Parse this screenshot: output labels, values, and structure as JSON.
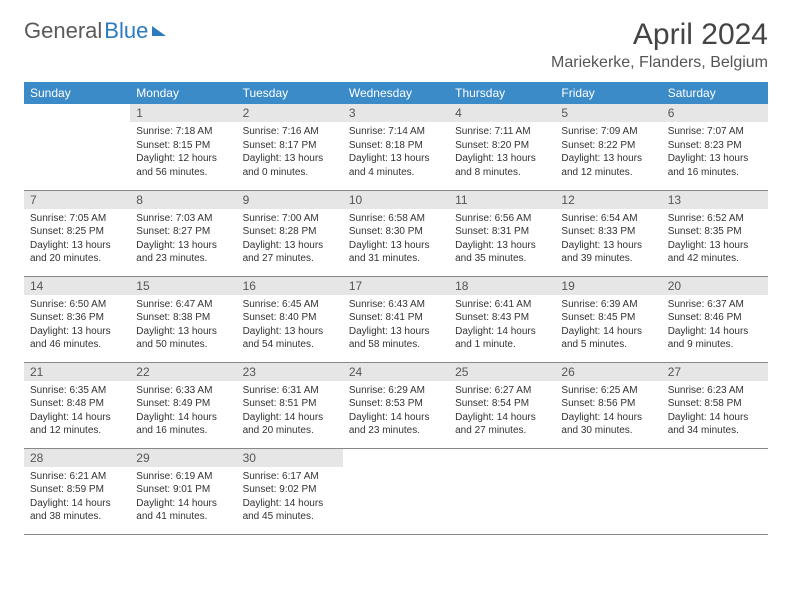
{
  "logo": {
    "text1": "General",
    "text2": "Blue"
  },
  "title": "April 2024",
  "location": "Mariekerke, Flanders, Belgium",
  "header_bg": "#3b8bc9",
  "daynum_bg": "#e6e6e6",
  "days": [
    "Sunday",
    "Monday",
    "Tuesday",
    "Wednesday",
    "Thursday",
    "Friday",
    "Saturday"
  ],
  "weeks": [
    [
      {
        "n": "",
        "sr": "",
        "ss": "",
        "dl": ""
      },
      {
        "n": "1",
        "sr": "Sunrise: 7:18 AM",
        "ss": "Sunset: 8:15 PM",
        "dl": "Daylight: 12 hours and 56 minutes."
      },
      {
        "n": "2",
        "sr": "Sunrise: 7:16 AM",
        "ss": "Sunset: 8:17 PM",
        "dl": "Daylight: 13 hours and 0 minutes."
      },
      {
        "n": "3",
        "sr": "Sunrise: 7:14 AM",
        "ss": "Sunset: 8:18 PM",
        "dl": "Daylight: 13 hours and 4 minutes."
      },
      {
        "n": "4",
        "sr": "Sunrise: 7:11 AM",
        "ss": "Sunset: 8:20 PM",
        "dl": "Daylight: 13 hours and 8 minutes."
      },
      {
        "n": "5",
        "sr": "Sunrise: 7:09 AM",
        "ss": "Sunset: 8:22 PM",
        "dl": "Daylight: 13 hours and 12 minutes."
      },
      {
        "n": "6",
        "sr": "Sunrise: 7:07 AM",
        "ss": "Sunset: 8:23 PM",
        "dl": "Daylight: 13 hours and 16 minutes."
      }
    ],
    [
      {
        "n": "7",
        "sr": "Sunrise: 7:05 AM",
        "ss": "Sunset: 8:25 PM",
        "dl": "Daylight: 13 hours and 20 minutes."
      },
      {
        "n": "8",
        "sr": "Sunrise: 7:03 AM",
        "ss": "Sunset: 8:27 PM",
        "dl": "Daylight: 13 hours and 23 minutes."
      },
      {
        "n": "9",
        "sr": "Sunrise: 7:00 AM",
        "ss": "Sunset: 8:28 PM",
        "dl": "Daylight: 13 hours and 27 minutes."
      },
      {
        "n": "10",
        "sr": "Sunrise: 6:58 AM",
        "ss": "Sunset: 8:30 PM",
        "dl": "Daylight: 13 hours and 31 minutes."
      },
      {
        "n": "11",
        "sr": "Sunrise: 6:56 AM",
        "ss": "Sunset: 8:31 PM",
        "dl": "Daylight: 13 hours and 35 minutes."
      },
      {
        "n": "12",
        "sr": "Sunrise: 6:54 AM",
        "ss": "Sunset: 8:33 PM",
        "dl": "Daylight: 13 hours and 39 minutes."
      },
      {
        "n": "13",
        "sr": "Sunrise: 6:52 AM",
        "ss": "Sunset: 8:35 PM",
        "dl": "Daylight: 13 hours and 42 minutes."
      }
    ],
    [
      {
        "n": "14",
        "sr": "Sunrise: 6:50 AM",
        "ss": "Sunset: 8:36 PM",
        "dl": "Daylight: 13 hours and 46 minutes."
      },
      {
        "n": "15",
        "sr": "Sunrise: 6:47 AM",
        "ss": "Sunset: 8:38 PM",
        "dl": "Daylight: 13 hours and 50 minutes."
      },
      {
        "n": "16",
        "sr": "Sunrise: 6:45 AM",
        "ss": "Sunset: 8:40 PM",
        "dl": "Daylight: 13 hours and 54 minutes."
      },
      {
        "n": "17",
        "sr": "Sunrise: 6:43 AM",
        "ss": "Sunset: 8:41 PM",
        "dl": "Daylight: 13 hours and 58 minutes."
      },
      {
        "n": "18",
        "sr": "Sunrise: 6:41 AM",
        "ss": "Sunset: 8:43 PM",
        "dl": "Daylight: 14 hours and 1 minute."
      },
      {
        "n": "19",
        "sr": "Sunrise: 6:39 AM",
        "ss": "Sunset: 8:45 PM",
        "dl": "Daylight: 14 hours and 5 minutes."
      },
      {
        "n": "20",
        "sr": "Sunrise: 6:37 AM",
        "ss": "Sunset: 8:46 PM",
        "dl": "Daylight: 14 hours and 9 minutes."
      }
    ],
    [
      {
        "n": "21",
        "sr": "Sunrise: 6:35 AM",
        "ss": "Sunset: 8:48 PM",
        "dl": "Daylight: 14 hours and 12 minutes."
      },
      {
        "n": "22",
        "sr": "Sunrise: 6:33 AM",
        "ss": "Sunset: 8:49 PM",
        "dl": "Daylight: 14 hours and 16 minutes."
      },
      {
        "n": "23",
        "sr": "Sunrise: 6:31 AM",
        "ss": "Sunset: 8:51 PM",
        "dl": "Daylight: 14 hours and 20 minutes."
      },
      {
        "n": "24",
        "sr": "Sunrise: 6:29 AM",
        "ss": "Sunset: 8:53 PM",
        "dl": "Daylight: 14 hours and 23 minutes."
      },
      {
        "n": "25",
        "sr": "Sunrise: 6:27 AM",
        "ss": "Sunset: 8:54 PM",
        "dl": "Daylight: 14 hours and 27 minutes."
      },
      {
        "n": "26",
        "sr": "Sunrise: 6:25 AM",
        "ss": "Sunset: 8:56 PM",
        "dl": "Daylight: 14 hours and 30 minutes."
      },
      {
        "n": "27",
        "sr": "Sunrise: 6:23 AM",
        "ss": "Sunset: 8:58 PM",
        "dl": "Daylight: 14 hours and 34 minutes."
      }
    ],
    [
      {
        "n": "28",
        "sr": "Sunrise: 6:21 AM",
        "ss": "Sunset: 8:59 PM",
        "dl": "Daylight: 14 hours and 38 minutes."
      },
      {
        "n": "29",
        "sr": "Sunrise: 6:19 AM",
        "ss": "Sunset: 9:01 PM",
        "dl": "Daylight: 14 hours and 41 minutes."
      },
      {
        "n": "30",
        "sr": "Sunrise: 6:17 AM",
        "ss": "Sunset: 9:02 PM",
        "dl": "Daylight: 14 hours and 45 minutes."
      },
      {
        "n": "",
        "sr": "",
        "ss": "",
        "dl": ""
      },
      {
        "n": "",
        "sr": "",
        "ss": "",
        "dl": ""
      },
      {
        "n": "",
        "sr": "",
        "ss": "",
        "dl": ""
      },
      {
        "n": "",
        "sr": "",
        "ss": "",
        "dl": ""
      }
    ]
  ]
}
